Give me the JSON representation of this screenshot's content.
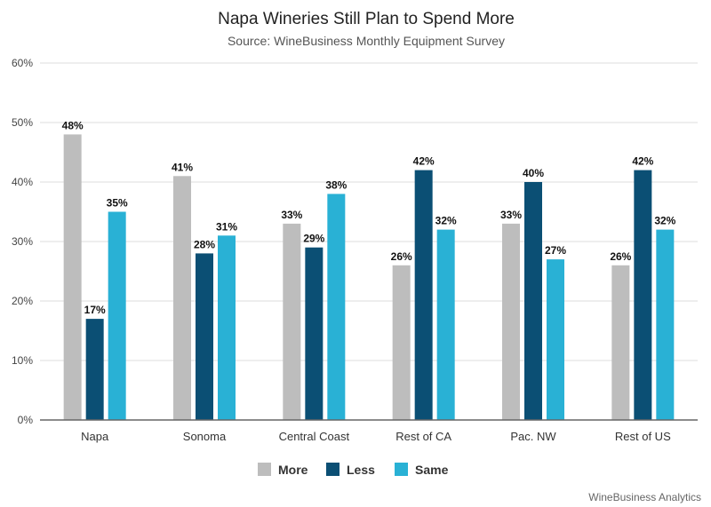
{
  "chart_data": {
    "type": "bar",
    "title": "Napa Wineries Still Plan to Spend More",
    "subtitle": "Source: WineBusiness Monthly Equipment Survey",
    "categories": [
      "Napa",
      "Sonoma",
      "Central Coast",
      "Rest of CA",
      "Pac. NW",
      "Rest of US"
    ],
    "series": [
      {
        "name": "More",
        "color": "#bdbdbd",
        "values": [
          48,
          41,
          33,
          26,
          33,
          26
        ]
      },
      {
        "name": "Less",
        "color": "#0b4f74",
        "values": [
          17,
          28,
          29,
          42,
          40,
          42
        ]
      },
      {
        "name": "Same",
        "color": "#29b1d5",
        "values": [
          35,
          31,
          38,
          32,
          27,
          32
        ]
      }
    ],
    "ylim": [
      0,
      60
    ],
    "yticks": [
      0,
      10,
      20,
      30,
      40,
      50,
      60
    ],
    "ytick_labels": [
      "0%",
      "10%",
      "20%",
      "30%",
      "40%",
      "50%",
      "60%"
    ],
    "value_suffix": "%",
    "xlabel": "",
    "ylabel": "",
    "grid": true,
    "legend_position": "bottom-center",
    "footer": "WineBusiness Analytics"
  }
}
